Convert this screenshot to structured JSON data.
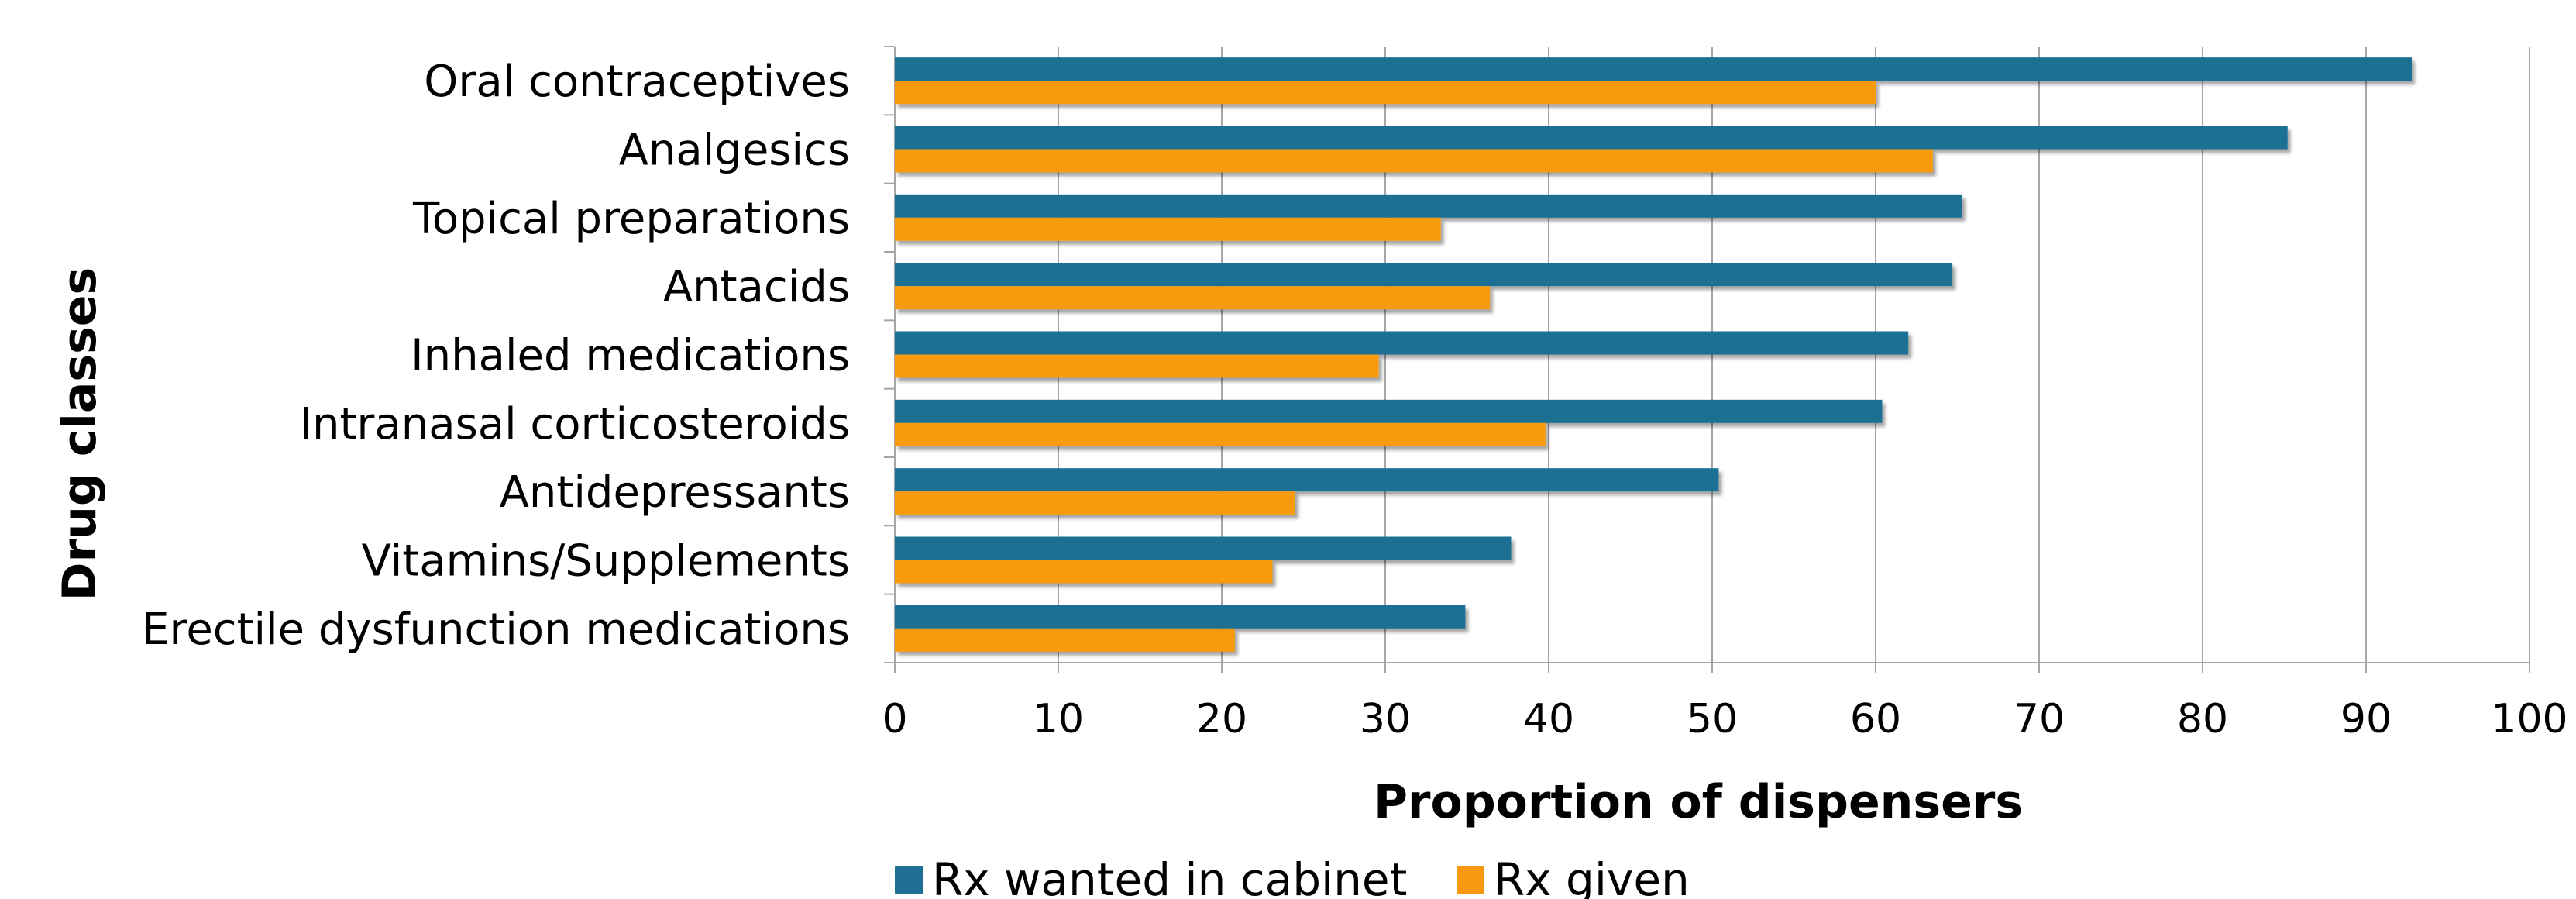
{
  "chart_data": {
    "type": "bar",
    "orientation": "horizontal",
    "categories": [
      "Oral contraceptives",
      "Analgesics",
      "Topical preparations",
      "Antacids",
      "Inhaled medications",
      "Intranasal corticosteroids",
      "Antidepressants",
      "Vitamins/Supplements",
      "Erectile dysfunction medications"
    ],
    "series": [
      {
        "name": "Rx wanted in cabinet",
        "color": "#1f6f94",
        "values": [
          92.8,
          85.2,
          65.3,
          64.7,
          62.0,
          60.4,
          50.4,
          37.7,
          34.9
        ]
      },
      {
        "name": "Rx given",
        "color": "#f79a10",
        "values": [
          60.0,
          63.5,
          33.4,
          36.4,
          29.6,
          39.8,
          24.5,
          23.1,
          20.8
        ]
      }
    ],
    "xlabel": "Proportion of dispensers",
    "ylabel": "Drug classes",
    "xlim": [
      0,
      100
    ],
    "xticks": [
      "0",
      "10",
      "20",
      "30",
      "40",
      "50",
      "60",
      "70",
      "80",
      "90",
      "100"
    ],
    "grid": true,
    "legend_position": "bottom"
  }
}
